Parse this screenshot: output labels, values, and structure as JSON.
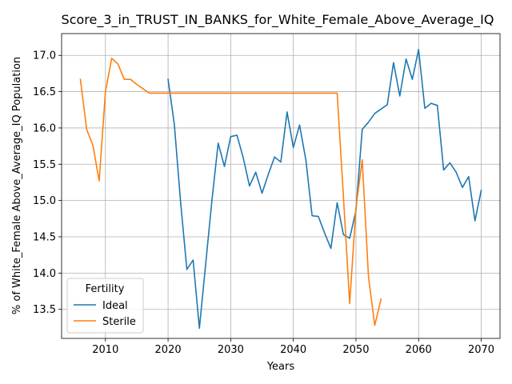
{
  "chart_data": {
    "type": "line",
    "title": "Score_3_in_TRUST_IN_BANKS_for_White_Female_Above_Average_IQ",
    "xlabel": "Years",
    "ylabel": "% of White_Female Above_Average_IQ Population",
    "xlim": [
      2003,
      2073
    ],
    "ylim": [
      13.1,
      17.3
    ],
    "xticks": [
      2010,
      2020,
      2030,
      2040,
      2050,
      2060,
      2070
    ],
    "yticks": [
      13.5,
      14.0,
      14.5,
      15.0,
      15.5,
      16.0,
      16.5,
      17.0
    ],
    "xtick_labels": [
      "2010",
      "2020",
      "2030",
      "2040",
      "2050",
      "2060",
      "2070"
    ],
    "ytick_labels": [
      "13.5",
      "14.0",
      "14.5",
      "15.0",
      "15.5",
      "16.0",
      "16.5",
      "17.0"
    ],
    "grid": true,
    "legend": {
      "title": "Fertility",
      "placement": "lower-left"
    },
    "series": [
      {
        "name": "Ideal",
        "color": "#1f77b4",
        "x": [
          2020,
          2021,
          2022,
          2023,
          2024,
          2025,
          2026,
          2027,
          2028,
          2029,
          2030,
          2031,
          2032,
          2033,
          2034,
          2035,
          2036,
          2037,
          2038,
          2039,
          2040,
          2041,
          2042,
          2043,
          2044,
          2045,
          2046,
          2047,
          2048,
          2049,
          2050,
          2051,
          2052,
          2053,
          2054,
          2055,
          2056,
          2057,
          2058,
          2059,
          2060,
          2061,
          2062,
          2063,
          2064,
          2065,
          2066,
          2067,
          2068,
          2069,
          2070
        ],
        "values": [
          16.67,
          16.05,
          14.98,
          14.05,
          14.18,
          13.24,
          14.12,
          15.0,
          15.79,
          15.47,
          15.88,
          15.9,
          15.59,
          15.2,
          15.39,
          15.1,
          15.36,
          15.6,
          15.53,
          16.22,
          15.73,
          16.04,
          15.56,
          14.79,
          14.78,
          14.55,
          14.34,
          14.97,
          14.53,
          14.48,
          14.86,
          15.98,
          16.08,
          16.2,
          16.26,
          16.32,
          16.9,
          16.44,
          16.95,
          16.67,
          17.08,
          16.27,
          16.34,
          16.31,
          15.42,
          15.52,
          15.39,
          15.18,
          15.33,
          14.72,
          15.14
        ]
      },
      {
        "name": "Sterile",
        "color": "#ff7f0e",
        "x": [
          2006,
          2007,
          2008,
          2009,
          2010,
          2011,
          2012,
          2013,
          2014,
          2015,
          2016,
          2017,
          2018,
          2019,
          2020,
          2021,
          2022,
          2023,
          2024,
          2025,
          2026,
          2027,
          2028,
          2029,
          2030,
          2031,
          2032,
          2033,
          2034,
          2035,
          2036,
          2037,
          2038,
          2039,
          2040,
          2041,
          2042,
          2043,
          2044,
          2045,
          2046,
          2047,
          2048,
          2049,
          2050,
          2051,
          2052,
          2053,
          2054
        ],
        "values": [
          16.67,
          15.98,
          15.76,
          15.27,
          16.5,
          16.96,
          16.88,
          16.67,
          16.67,
          16.6,
          16.54,
          16.48,
          16.48,
          16.48,
          16.48,
          16.48,
          16.48,
          16.48,
          16.48,
          16.48,
          16.48,
          16.48,
          16.48,
          16.48,
          16.48,
          16.48,
          16.48,
          16.48,
          16.48,
          16.48,
          16.48,
          16.48,
          16.48,
          16.48,
          16.48,
          16.48,
          16.48,
          16.48,
          16.48,
          16.48,
          16.48,
          16.48,
          15.05,
          13.58,
          14.9,
          15.56,
          13.95,
          13.28,
          13.64
        ]
      }
    ]
  }
}
